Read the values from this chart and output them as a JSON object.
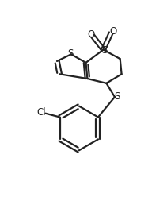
{
  "bg_color": "#ffffff",
  "line_color": "#222222",
  "line_width": 1.6,
  "figsize": [
    1.92,
    2.48
  ],
  "dpi": 100,
  "xlim": [
    0,
    1
  ],
  "ylim": [
    0,
    1
  ],
  "font_size": 8.5
}
